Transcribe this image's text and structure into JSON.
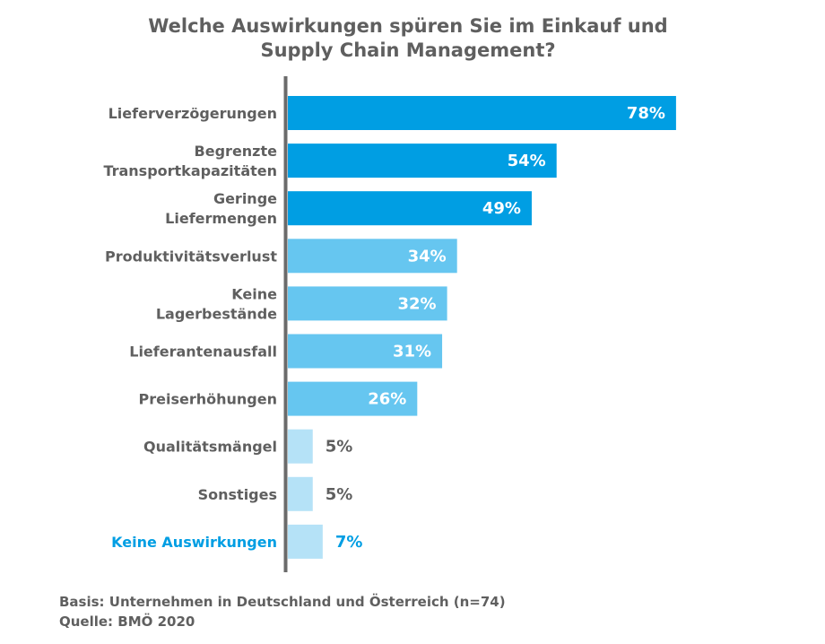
{
  "chart_data": {
    "type": "bar",
    "orientation": "horizontal",
    "title": [
      "Welche Auswirkungen spüren Sie im Einkauf und",
      "Supply Chain Management?"
    ],
    "categories": [
      [
        "Lieferverzögerungen"
      ],
      [
        "Begrenzte",
        "Transportkapazitäten"
      ],
      [
        "Geringe",
        "Liefermengen"
      ],
      [
        "Produktivitätsverlust"
      ],
      [
        "Keine",
        "Lagerbestände"
      ],
      [
        "Lieferantenausfall"
      ],
      [
        "Preiserhöhungen"
      ],
      [
        "Qualitätsmängel"
      ],
      [
        "Sonstiges"
      ],
      [
        "Keine Auswirkungen"
      ]
    ],
    "values": [
      78,
      54,
      49,
      34,
      32,
      31,
      26,
      5,
      5,
      7
    ],
    "value_labels": [
      "78%",
      "54%",
      "49%",
      "34%",
      "32%",
      "31%",
      "26%",
      "5%",
      "5%",
      "7%"
    ],
    "tiers": [
      0,
      0,
      0,
      1,
      1,
      1,
      1,
      2,
      2,
      2
    ],
    "colors": [
      "#009ee3",
      "#66c6f0",
      "#b5e2f7"
    ],
    "highlight_category_color": "#009ee3",
    "highlight_index": 9,
    "text_color": "#5f5f5f",
    "xlim": [
      0,
      80
    ],
    "grid": false
  },
  "footer": {
    "basis": "Basis: Unternehmen in Deutschland und Österreich (n=74)",
    "source": "Quelle: BMÖ 2020"
  }
}
